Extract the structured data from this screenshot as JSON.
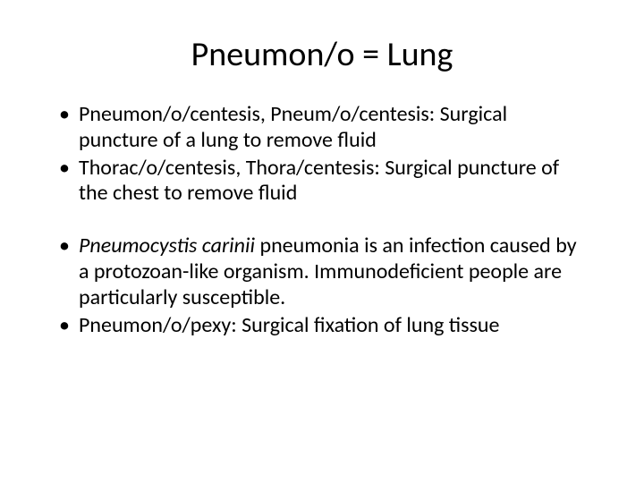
{
  "slide": {
    "title": "Pneumon/o = Lung",
    "bullets": [
      {
        "text": "Pneumon/o/centesis, Pneum/o/centesis: Surgical puncture of a lung to remove fluid"
      },
      {
        "text": "Thorac/o/centesis, Thora/centesis: Surgical puncture of the chest to remove fluid"
      },
      {
        "italic_prefix": "Pneumocystis carinii",
        "rest": " pneumonia is an infection caused by a protozoan-like organism. Immunodeficient people are particularly susceptible."
      },
      {
        "text": "Pneumon/o/pexy: Surgical fixation of lung tissue"
      }
    ]
  },
  "style": {
    "background_color": "#ffffff",
    "text_color": "#000000",
    "title_fontsize": 38,
    "body_fontsize": 24,
    "font_family": "Calibri, Arial, sans-serif"
  }
}
